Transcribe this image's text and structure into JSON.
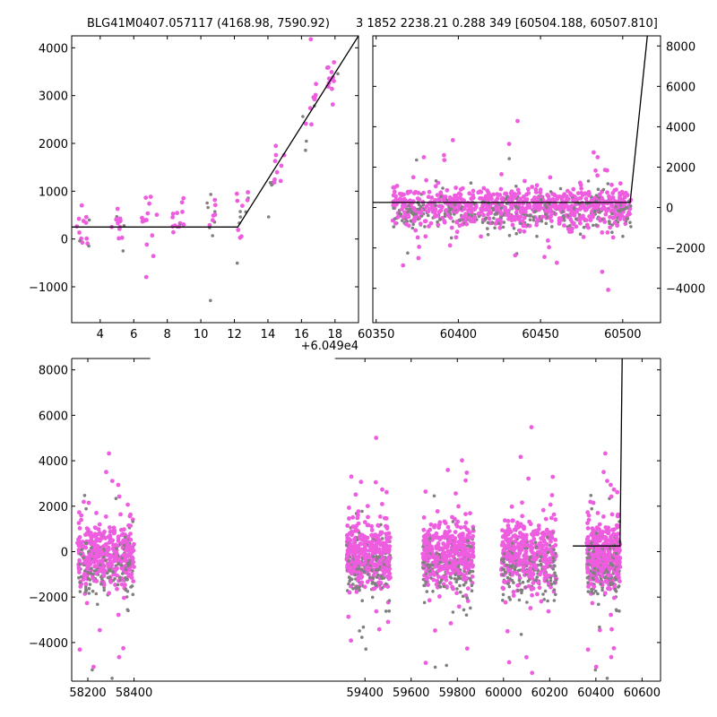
{
  "title": {
    "left": "BLG41M0407.057117 (4168.98, 7590.92)",
    "right": "3 1852 2238.21 0.288 349 [60504.188, 60507.810]"
  },
  "colors": {
    "model": "#000000",
    "data_primary": "#ee5ddf",
    "data_secondary": "#808080"
  },
  "chart_data": [
    {
      "type": "scatter",
      "panel": "top-left",
      "title": "BLG41M0407.057117 (4168.98, 7590.92)",
      "x_offset_label": "+6.049e4",
      "xlim": [
        2.3,
        19.4
      ],
      "ylim": [
        -1750,
        4250
      ],
      "xticks": [
        4,
        6,
        8,
        10,
        12,
        14,
        16,
        18
      ],
      "yticks": [
        -1000,
        0,
        1000,
        2000,
        3000,
        4000
      ],
      "y_axis_side": "left",
      "model": [
        [
          2.3,
          250
        ],
        [
          12.2,
          250
        ],
        [
          19.4,
          4250
        ]
      ],
      "seasons": [
        [
          2.5,
          3.5
        ],
        [
          4.5,
          5.5
        ],
        [
          6.4,
          7.4
        ],
        [
          8.3,
          9.0
        ],
        [
          10.2,
          11.0
        ],
        [
          12.1,
          13.0
        ],
        [
          14.0,
          15.0
        ],
        [
          15.9,
          17.0
        ],
        [
          17.4,
          18.2
        ]
      ],
      "scatter": [
        {
          "x_range": [
            2.3,
            19.4
          ],
          "level": 300,
          "spread": 280
        }
      ]
    },
    {
      "type": "scatter",
      "panel": "top-right",
      "title": "3 1852 2238.21 0.288 349 [60504.188, 60507.810]",
      "xlim": [
        60348,
        60523
      ],
      "ylim": [
        -5700,
        8500
      ],
      "xticks": [
        60350,
        60400,
        60450,
        60500
      ],
      "yticks": [
        -4000,
        -2000,
        0,
        2000,
        4000,
        6000,
        8000
      ],
      "y_axis_side": "right",
      "model": [
        [
          60348,
          250
        ],
        [
          60504.5,
          250
        ],
        [
          60515,
          8500
        ]
      ],
      "seasons": [
        [
          60360,
          60505
        ]
      ],
      "scatter": [
        {
          "x_range": [
            60360,
            60505
          ],
          "level": 0,
          "spread": 450
        }
      ]
    },
    {
      "type": "scatter",
      "panel": "bottom",
      "xlim": [
        58130,
        60680
      ],
      "ylim": [
        -5700,
        8500
      ],
      "xticks": [
        58200,
        58400,
        59400,
        59600,
        59800,
        60000,
        60200,
        60400,
        60600
      ],
      "yticks": [
        -4000,
        -2000,
        0,
        2000,
        4000,
        6000,
        8000
      ],
      "y_axis_side": "left",
      "axis_break": {
        "left_end": 58470,
        "right_start": 59270
      },
      "model": [
        [
          60300,
          250
        ],
        [
          60504.5,
          250
        ],
        [
          60514,
          8500
        ]
      ],
      "seasons": [
        [
          58155,
          58400
        ],
        [
          59320,
          59510
        ],
        [
          59650,
          59870
        ],
        [
          59990,
          60230
        ],
        [
          60360,
          60505
        ]
      ],
      "scatter": [
        {
          "x_range": [
            58155,
            60505
          ],
          "level": -200,
          "spread": 700
        }
      ]
    }
  ]
}
